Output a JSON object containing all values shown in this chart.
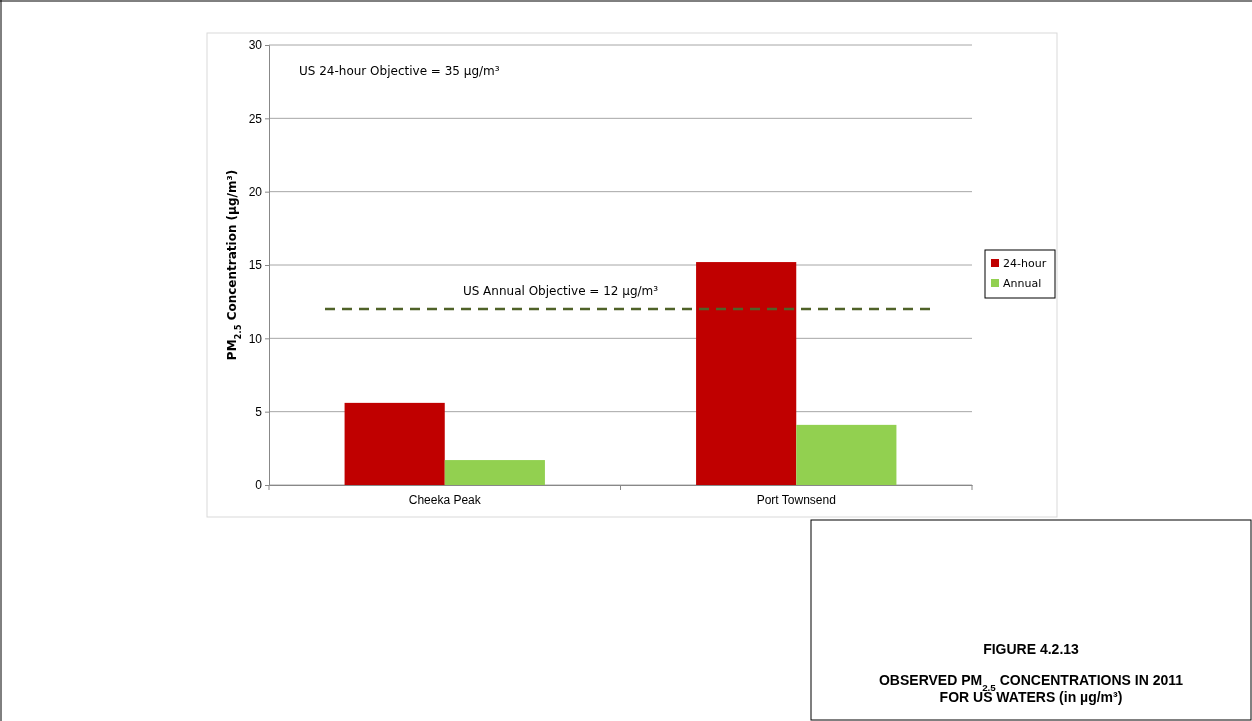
{
  "chart_data": {
    "type": "bar",
    "title": "FIGURE 4.2.13",
    "subtitle": "OBSERVED PM$_{2.5}$ CONCENTRATIONS IN 2011 FOR US WATERS (in µg/m³)",
    "ylabel": "PM$_{2.5}$ Concentration (µg/m³)",
    "categories": [
      "Cheeka Peak",
      "Port Townsend"
    ],
    "series": [
      {
        "name": "24-hour",
        "color": "#c00000",
        "values": [
          5.6,
          15.2
        ]
      },
      {
        "name": "Annual",
        "color": "#92d050",
        "values": [
          1.7,
          4.1
        ]
      }
    ],
    "ylim": [
      0,
      30
    ],
    "yticks": [
      0,
      5,
      10,
      15,
      20,
      25,
      30
    ],
    "grid": "y",
    "legend": "right",
    "ref_lines": [
      {
        "axis": "y",
        "value": 12,
        "label": "US Annual  Objective = 12 µg/m³",
        "color": "#4f6228",
        "line_style": "dashed"
      }
    ],
    "annotations": [
      "US 24-hour  Objective = 35 µg/m³"
    ]
  }
}
